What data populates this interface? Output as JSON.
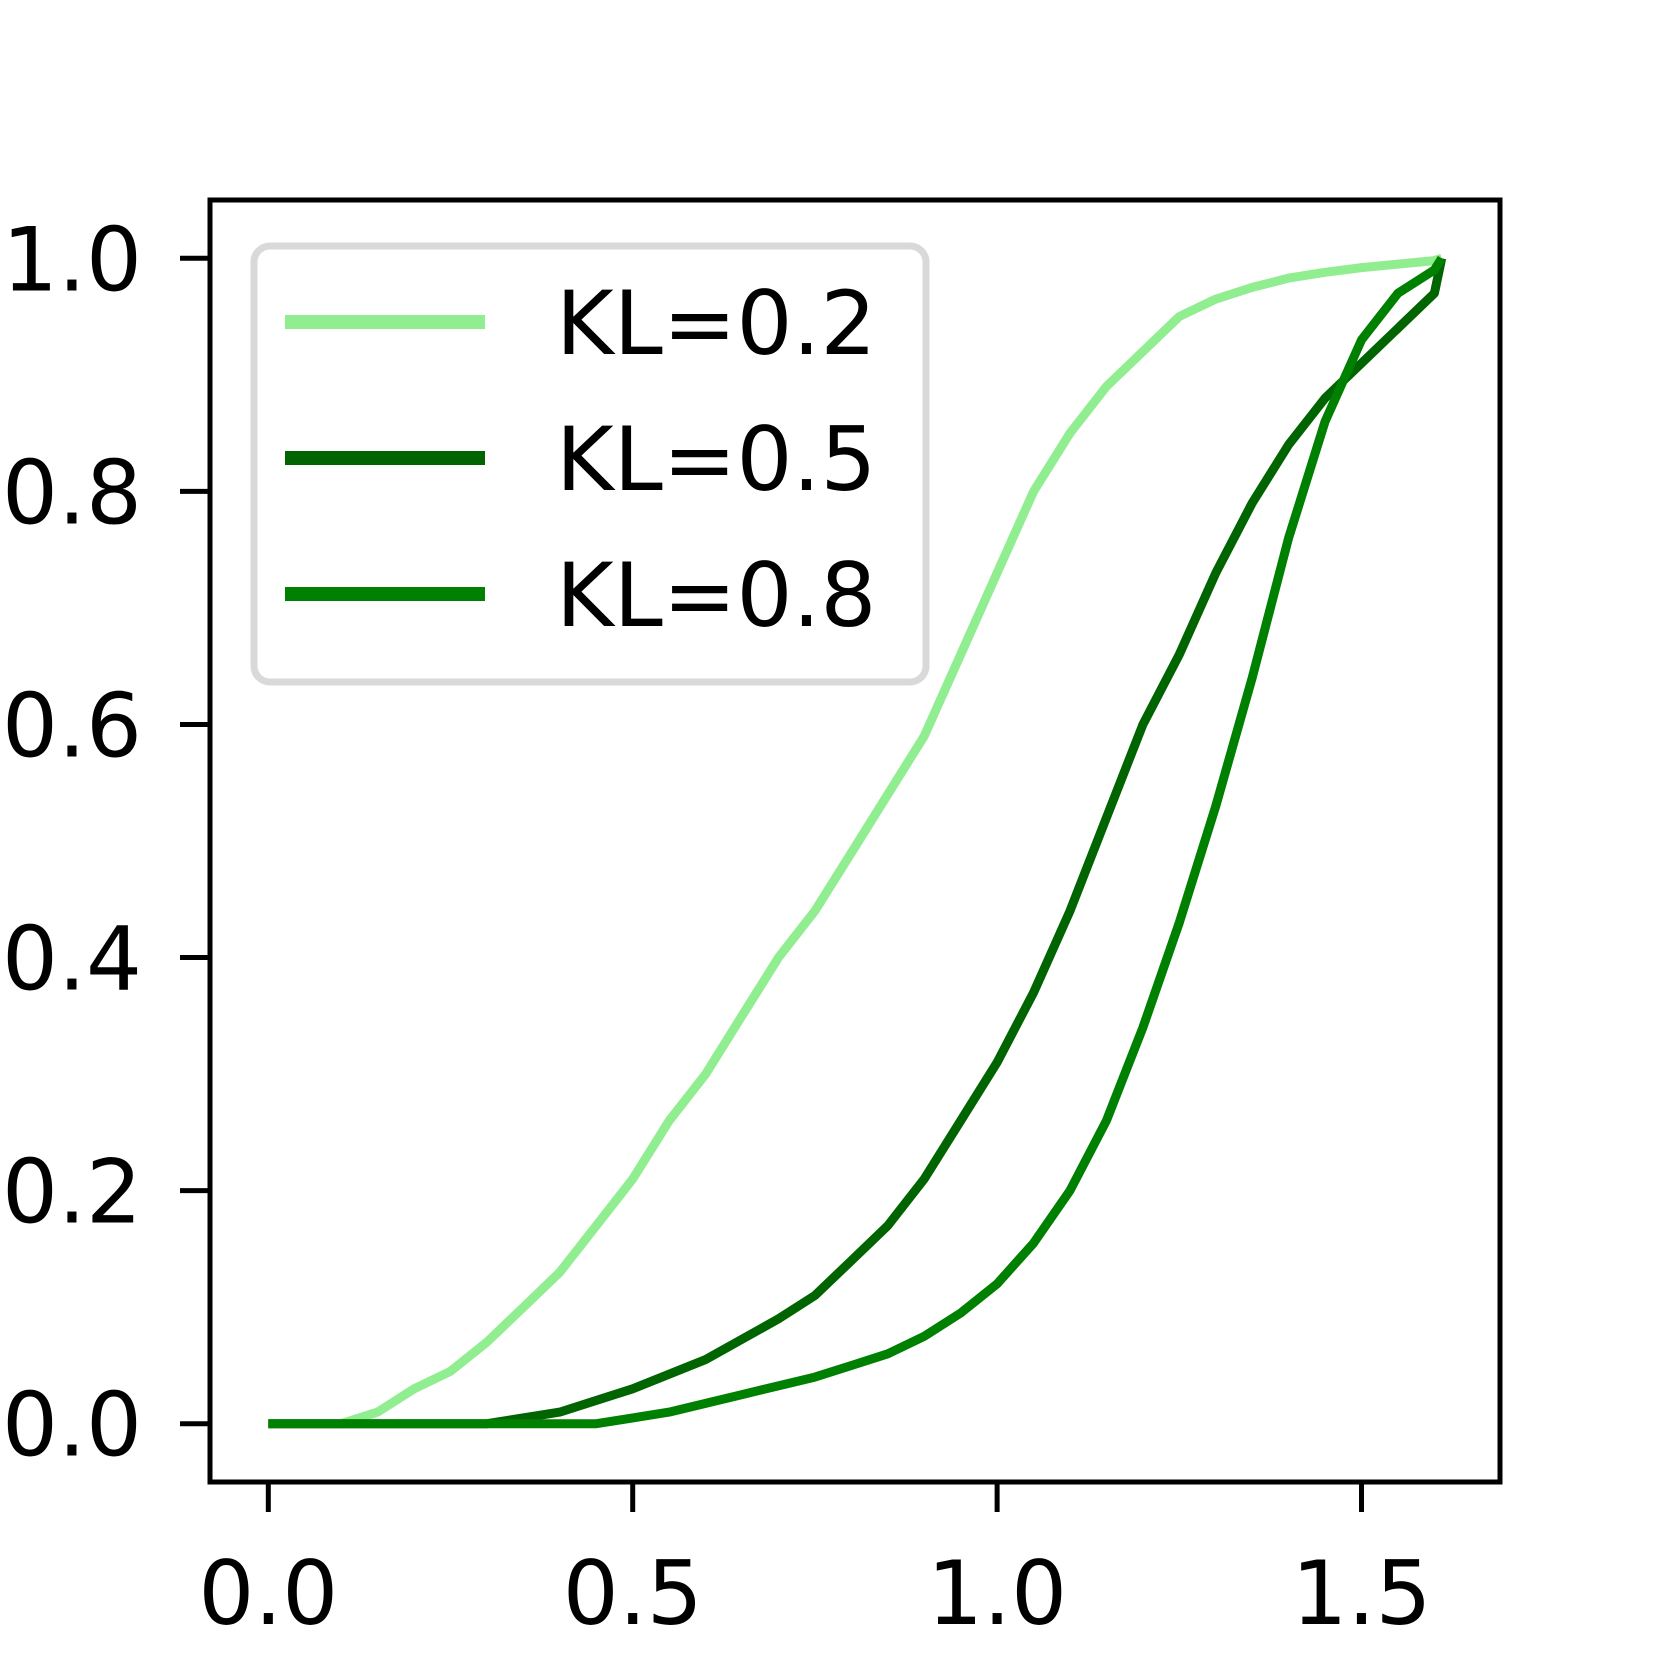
{
  "chart_data": {
    "type": "line",
    "title": "",
    "xlabel": "",
    "ylabel": "",
    "xlim": [
      -0.08,
      1.69
    ],
    "ylim": [
      -0.05,
      1.05
    ],
    "xticks": [
      "0.0",
      "0.5",
      "1.0",
      "1.5"
    ],
    "xtick_values": [
      0.0,
      0.5,
      1.0,
      1.5
    ],
    "yticks": [
      "0.0",
      "0.2",
      "0.4",
      "0.6",
      "0.8",
      "1.0"
    ],
    "ytick_values": [
      0.0,
      0.2,
      0.4,
      0.6,
      0.8,
      1.0
    ],
    "grid": false,
    "legend_position": "top-left",
    "series": [
      {
        "name": "KL=0.2",
        "color": "#90ee90",
        "x": [
          0.0,
          0.1,
          0.15,
          0.2,
          0.25,
          0.3,
          0.35,
          0.4,
          0.45,
          0.5,
          0.55,
          0.6,
          0.65,
          0.7,
          0.75,
          0.8,
          0.85,
          0.9,
          0.95,
          1.0,
          1.05,
          1.1,
          1.15,
          1.2,
          1.25,
          1.3,
          1.35,
          1.4,
          1.45,
          1.5,
          1.55,
          1.6,
          1.61
        ],
        "y": [
          0.0,
          0.0,
          0.01,
          0.03,
          0.045,
          0.07,
          0.1,
          0.13,
          0.17,
          0.21,
          0.26,
          0.3,
          0.35,
          0.4,
          0.44,
          0.49,
          0.54,
          0.59,
          0.66,
          0.73,
          0.8,
          0.85,
          0.89,
          0.92,
          0.95,
          0.965,
          0.975,
          0.983,
          0.988,
          0.992,
          0.995,
          0.998,
          1.0
        ]
      },
      {
        "name": "KL=0.5",
        "color": "#006400",
        "x": [
          0.0,
          0.3,
          0.4,
          0.5,
          0.6,
          0.7,
          0.75,
          0.8,
          0.85,
          0.9,
          0.95,
          1.0,
          1.05,
          1.1,
          1.15,
          1.2,
          1.25,
          1.3,
          1.35,
          1.4,
          1.45,
          1.5,
          1.55,
          1.6,
          1.61
        ],
        "y": [
          0.0,
          0.0,
          0.01,
          0.03,
          0.055,
          0.09,
          0.11,
          0.14,
          0.17,
          0.21,
          0.26,
          0.31,
          0.37,
          0.44,
          0.52,
          0.6,
          0.66,
          0.73,
          0.79,
          0.84,
          0.88,
          0.91,
          0.94,
          0.97,
          1.0
        ]
      },
      {
        "name": "KL=0.8",
        "color": "#008000",
        "x": [
          0.0,
          0.45,
          0.55,
          0.65,
          0.75,
          0.8,
          0.85,
          0.9,
          0.95,
          1.0,
          1.05,
          1.1,
          1.15,
          1.2,
          1.25,
          1.3,
          1.35,
          1.4,
          1.45,
          1.5,
          1.55,
          1.6,
          1.61
        ],
        "y": [
          0.0,
          0.0,
          0.01,
          0.025,
          0.04,
          0.05,
          0.06,
          0.075,
          0.095,
          0.12,
          0.155,
          0.2,
          0.26,
          0.34,
          0.43,
          0.53,
          0.64,
          0.76,
          0.86,
          0.93,
          0.97,
          0.99,
          1.0
        ]
      }
    ]
  }
}
